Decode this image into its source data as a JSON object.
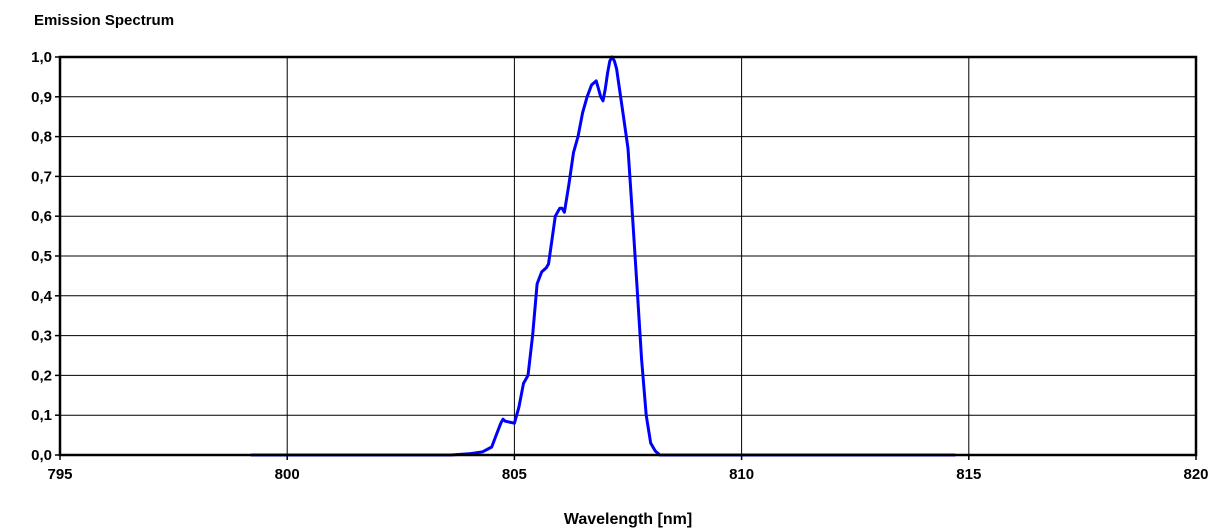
{
  "chart_data": {
    "type": "line",
    "title": "Emission Spectrum",
    "xlabel": "Wavelength [nm]",
    "ylabel": "",
    "xlim": [
      795,
      820
    ],
    "ylim": [
      0,
      1.0
    ],
    "x_ticks": [
      795,
      800,
      805,
      810,
      815,
      820
    ],
    "x_tick_labels": [
      "795",
      "800",
      "805",
      "810",
      "815",
      "820"
    ],
    "y_ticks": [
      0,
      0.1,
      0.2,
      0.3,
      0.4,
      0.5,
      0.6,
      0.7,
      0.8,
      0.9,
      1.0
    ],
    "y_tick_labels": [
      "0,0",
      "0,1",
      "0,2",
      "0,3",
      "0,4",
      "0,5",
      "0,6",
      "0,7",
      "0,8",
      "0,9",
      "1,0"
    ],
    "grid": true,
    "legend": "none",
    "series": [
      {
        "color": "#0000ff",
        "x": [
          799.2,
          803.6,
          804.0,
          804.3,
          804.5,
          804.6,
          804.7,
          804.75,
          804.8,
          805.0,
          805.1,
          805.2,
          805.3,
          805.4,
          805.5,
          805.6,
          805.7,
          805.75,
          805.8,
          805.9,
          806.0,
          806.05,
          806.1,
          806.2,
          806.3,
          806.4,
          806.5,
          806.6,
          806.7,
          806.8,
          806.85,
          806.9,
          806.95,
          807.0,
          807.05,
          807.1,
          807.15,
          807.2,
          807.25,
          807.3,
          807.4,
          807.5,
          807.6,
          807.7,
          807.8,
          807.9,
          808.0,
          808.1,
          808.2,
          808.4,
          808.9,
          814.7
        ],
        "y": [
          0.0,
          0.0,
          0.003,
          0.008,
          0.02,
          0.05,
          0.08,
          0.09,
          0.085,
          0.08,
          0.12,
          0.18,
          0.2,
          0.3,
          0.43,
          0.46,
          0.47,
          0.48,
          0.52,
          0.6,
          0.62,
          0.62,
          0.61,
          0.68,
          0.76,
          0.8,
          0.86,
          0.9,
          0.93,
          0.94,
          0.92,
          0.9,
          0.89,
          0.92,
          0.96,
          0.99,
          1.0,
          0.99,
          0.97,
          0.93,
          0.85,
          0.77,
          0.6,
          0.42,
          0.24,
          0.1,
          0.03,
          0.01,
          0.0,
          0.0,
          0.0,
          0.0
        ]
      }
    ]
  }
}
